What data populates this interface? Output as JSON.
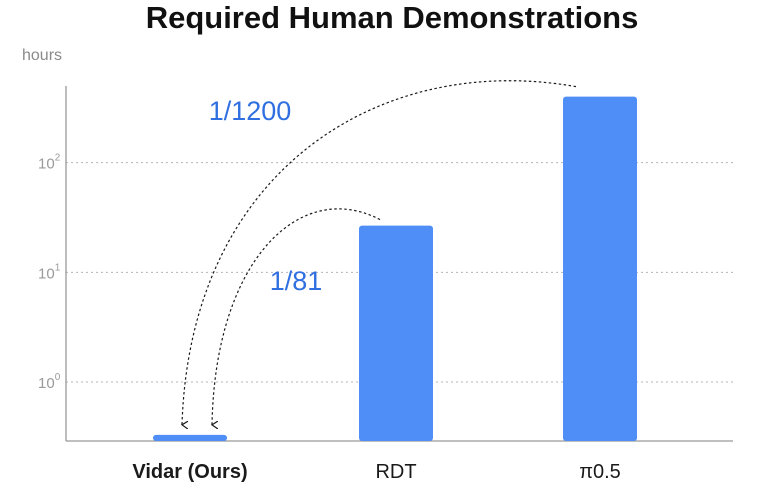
{
  "chart_data": {
    "type": "bar",
    "title": "Required Human Demonstrations",
    "ylabel": "hours",
    "yscale": "log",
    "ylim": [
      0.29,
      500
    ],
    "yticks": [
      {
        "value": 1,
        "base": "10",
        "exp": "0"
      },
      {
        "value": 10,
        "base": "10",
        "exp": "1"
      },
      {
        "value": 100,
        "base": "10",
        "exp": "2"
      }
    ],
    "grid": true,
    "bar_color": "#4f8ef7",
    "categories": [
      "Vidar (Ours)",
      "RDT",
      "π0.5"
    ],
    "highlight_category": "Vidar (Ours)",
    "values": [
      0.33,
      26.7,
      400
    ],
    "annotations": [
      {
        "text": "1/1200",
        "from": "π0.5",
        "to": "Vidar (Ours)",
        "color": "#2f6fe0"
      },
      {
        "text": "1/81",
        "from": "RDT",
        "to": "Vidar (Ours)",
        "color": "#2f6fe0"
      }
    ]
  }
}
